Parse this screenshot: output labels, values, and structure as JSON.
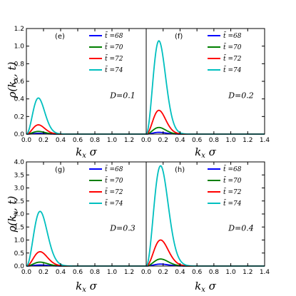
{
  "figure": {
    "ylabel": "ρ(k_x,t)",
    "xlabel": "k_x σ",
    "legend_entries": [
      "t̃ =68",
      "t̃ =70",
      "t̃ =72",
      "t̃ =74"
    ],
    "series_colors": [
      "#0000ff",
      "#007f00",
      "#ff0000",
      "#00bfbf"
    ]
  },
  "chart_data": [
    {
      "type": "line",
      "panel": "(e)",
      "annotation": "D=0.1",
      "xlabel": "k_x σ",
      "ylabel": "ρ(k_x,t)",
      "xlim": [
        0.0,
        1.4
      ],
      "ylim": [
        0.0,
        1.2
      ],
      "xticks": [
        "0.0",
        "0.2",
        "0.4",
        "0.6",
        "0.8",
        "1.0",
        "1.2",
        "1.4"
      ],
      "yticks": [
        "0.0",
        "0.2",
        "0.4",
        "0.6",
        "0.8",
        "1.0",
        "1.2"
      ],
      "legend_position": "top-right",
      "grid": false,
      "peak_x": 0.14,
      "x": [
        0.0,
        0.1,
        0.14,
        0.2,
        0.3,
        0.4,
        0.6,
        0.8,
        1.0,
        1.2,
        1.4
      ],
      "series": [
        {
          "name": "t̃ =68",
          "color": "#0000ff",
          "values": [
            0.0,
            0.006,
            0.008,
            0.006,
            0.002,
            0.0004,
            0.0,
            0.0,
            0.0,
            0.0,
            0.0
          ]
        },
        {
          "name": "t̃ =70",
          "color": "#007f00",
          "values": [
            0.0,
            0.024,
            0.03,
            0.025,
            0.009,
            0.002,
            0.0,
            0.0,
            0.0,
            0.0,
            0.0
          ]
        },
        {
          "name": "t̃ =72",
          "color": "#ff0000",
          "values": [
            0.0,
            0.085,
            0.105,
            0.088,
            0.033,
            0.006,
            0.0,
            0.0,
            0.0,
            0.0,
            0.0
          ]
        },
        {
          "name": "t̃ =74",
          "color": "#00bfbf",
          "values": [
            0.0,
            0.34,
            0.41,
            0.34,
            0.13,
            0.025,
            0.0,
            0.0,
            0.0,
            0.0,
            0.0
          ]
        }
      ]
    },
    {
      "type": "line",
      "panel": "(f)",
      "annotation": "D=0.2",
      "xlabel": "k_x σ",
      "ylabel": "",
      "xlim": [
        0.0,
        1.4
      ],
      "ylim": [
        0.0,
        1.2
      ],
      "xticks": [
        "0.0",
        "0.2",
        "0.4",
        "0.6",
        "0.8",
        "1.0",
        "1.2",
        "1.4"
      ],
      "yticks": [],
      "legend_position": "top-right",
      "grid": false,
      "peak_x": 0.15,
      "x": [
        0.0,
        0.1,
        0.15,
        0.2,
        0.3,
        0.4,
        0.6,
        0.8,
        1.0,
        1.2,
        1.4
      ],
      "series": [
        {
          "name": "t̃ =68",
          "color": "#0000ff",
          "values": [
            0.0,
            0.016,
            0.02,
            0.017,
            0.007,
            0.0015,
            0.0,
            0.0,
            0.0,
            0.0,
            0.0
          ]
        },
        {
          "name": "t̃ =70",
          "color": "#007f00",
          "values": [
            0.0,
            0.06,
            0.075,
            0.064,
            0.026,
            0.006,
            0.0,
            0.0,
            0.0,
            0.0,
            0.0
          ]
        },
        {
          "name": "t̃ =72",
          "color": "#ff0000",
          "values": [
            0.0,
            0.22,
            0.27,
            0.23,
            0.093,
            0.02,
            0.0,
            0.0,
            0.0,
            0.0,
            0.0
          ]
        },
        {
          "name": "t̃ =74",
          "color": "#00bfbf",
          "values": [
            0.0,
            0.86,
            1.06,
            0.91,
            0.37,
            0.08,
            0.0,
            0.0,
            0.0,
            0.0,
            0.0
          ]
        }
      ]
    },
    {
      "type": "line",
      "panel": "(g)",
      "annotation": "D=0.3",
      "xlabel": "k_x σ",
      "ylabel": "ρ(k_x,t)",
      "xlim": [
        0.0,
        1.4
      ],
      "ylim": [
        0.0,
        4.0
      ],
      "xticks": [
        "0.0",
        "0.2",
        "0.4",
        "0.6",
        "0.8",
        "1.0",
        "1.2",
        "1.4"
      ],
      "yticks": [
        "0.0",
        "0.5",
        "1.0",
        "1.5",
        "2.0",
        "2.5",
        "3.0",
        "3.5",
        "4.0"
      ],
      "legend_position": "top-right",
      "grid": false,
      "peak_x": 0.16,
      "x": [
        0.0,
        0.1,
        0.16,
        0.2,
        0.3,
        0.4,
        0.6,
        0.8,
        1.0,
        1.2,
        1.4
      ],
      "series": [
        {
          "name": "t̃ =68",
          "color": "#0000ff",
          "values": [
            0.0,
            0.03,
            0.04,
            0.036,
            0.016,
            0.004,
            0.0,
            0.0,
            0.0,
            0.0,
            0.0
          ]
        },
        {
          "name": "t̃ =70",
          "color": "#007f00",
          "values": [
            0.0,
            0.12,
            0.15,
            0.135,
            0.06,
            0.015,
            0.0,
            0.0,
            0.0,
            0.0,
            0.0
          ]
        },
        {
          "name": "t̃ =72",
          "color": "#ff0000",
          "values": [
            0.0,
            0.44,
            0.55,
            0.5,
            0.22,
            0.055,
            0.0,
            0.0,
            0.0,
            0.0,
            0.0
          ]
        },
        {
          "name": "t̃ =74",
          "color": "#00bfbf",
          "values": [
            0.0,
            1.68,
            2.1,
            1.9,
            0.84,
            0.21,
            0.0,
            0.0,
            0.0,
            0.0,
            0.0
          ]
        }
      ]
    },
    {
      "type": "line",
      "panel": "(h)",
      "annotation": "D=0.4",
      "xlabel": "k_x σ",
      "ylabel": "",
      "xlim": [
        0.0,
        1.4
      ],
      "ylim": [
        0.0,
        4.0
      ],
      "xticks": [
        "0.0",
        "0.2",
        "0.4",
        "0.6",
        "0.8",
        "1.0",
        "1.2",
        "1.4"
      ],
      "yticks": [],
      "legend_position": "top-right",
      "grid": false,
      "peak_x": 0.17,
      "x": [
        0.0,
        0.1,
        0.17,
        0.2,
        0.3,
        0.4,
        0.6,
        0.8,
        1.0,
        1.2,
        1.4
      ],
      "series": [
        {
          "name": "t̃ =68",
          "color": "#0000ff",
          "values": [
            0.0,
            0.055,
            0.075,
            0.072,
            0.036,
            0.01,
            0.0,
            0.0,
            0.0,
            0.0,
            0.0
          ]
        },
        {
          "name": "t̃ =70",
          "color": "#007f00",
          "values": [
            0.0,
            0.2,
            0.27,
            0.26,
            0.13,
            0.036,
            0.0,
            0.0,
            0.0,
            0.0,
            0.0
          ]
        },
        {
          "name": "t̃ =72",
          "color": "#ff0000",
          "values": [
            0.0,
            0.74,
            1.0,
            0.96,
            0.48,
            0.13,
            0.0,
            0.0,
            0.0,
            0.0,
            0.0
          ]
        },
        {
          "name": "t̃ =74",
          "color": "#00bfbf",
          "values": [
            0.0,
            2.85,
            3.85,
            3.7,
            1.85,
            0.5,
            0.0,
            0.0,
            0.0,
            0.0,
            0.0
          ]
        }
      ]
    }
  ]
}
